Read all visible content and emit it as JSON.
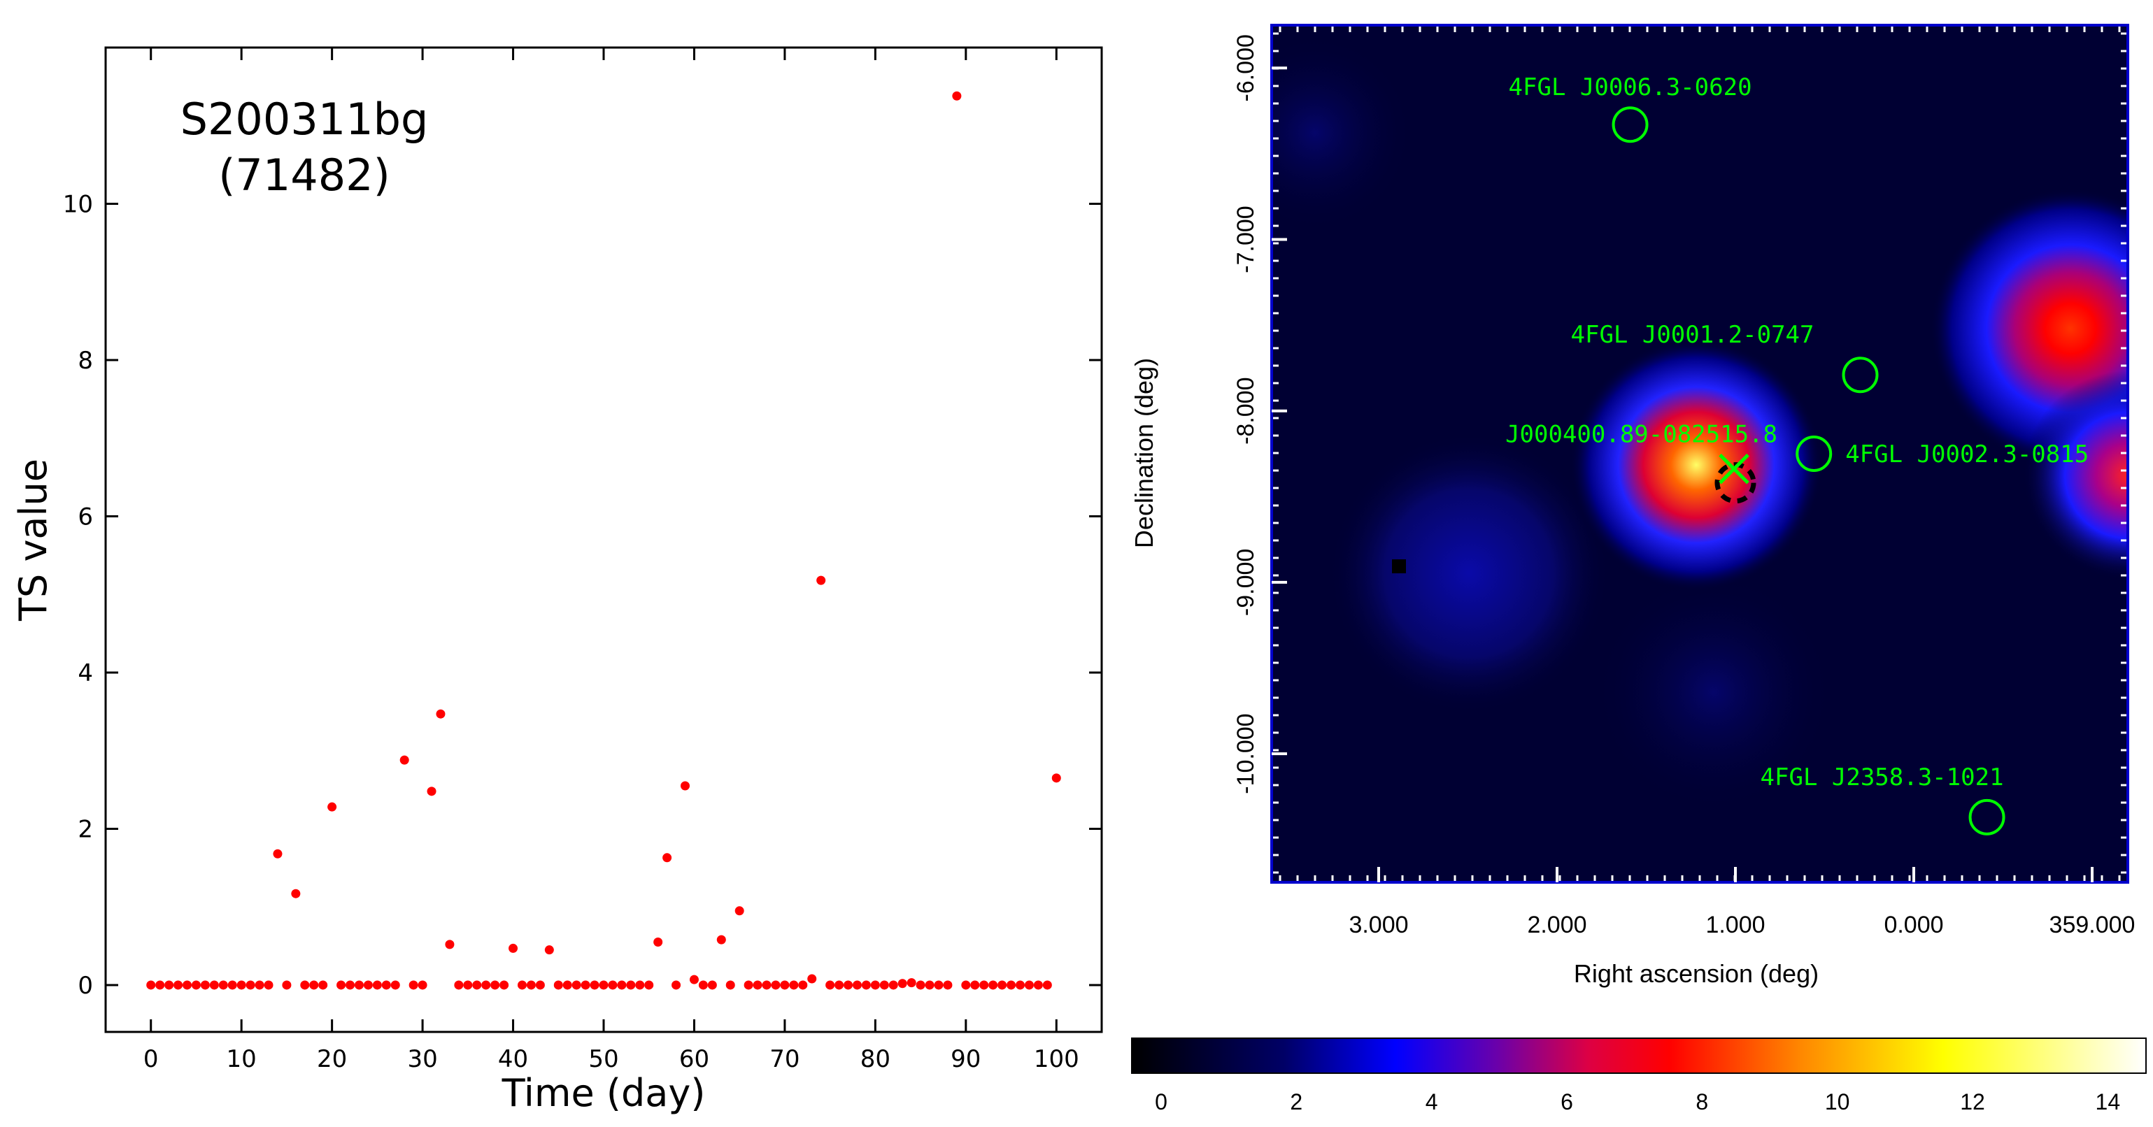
{
  "chart_data": [
    {
      "type": "scatter",
      "title": "S200311bg",
      "subtitle": "(71482)",
      "xlabel": "Time (day)",
      "ylabel": "TS value",
      "xlim": [
        -5,
        105
      ],
      "ylim": [
        -0.6,
        12.0
      ],
      "xticks": [
        0,
        10,
        20,
        30,
        40,
        50,
        60,
        70,
        80,
        90,
        100
      ],
      "yticks": [
        0,
        2,
        4,
        6,
        8,
        10
      ],
      "marker_color": "#ff0000",
      "points": [
        [
          0,
          0
        ],
        [
          1,
          0
        ],
        [
          2,
          0
        ],
        [
          3,
          0
        ],
        [
          4,
          0
        ],
        [
          5,
          0
        ],
        [
          6,
          0
        ],
        [
          7,
          0
        ],
        [
          8,
          0
        ],
        [
          9,
          0
        ],
        [
          10,
          0
        ],
        [
          11,
          0
        ],
        [
          12,
          0
        ],
        [
          13,
          0
        ],
        [
          14,
          1.68
        ],
        [
          15,
          0
        ],
        [
          16,
          1.17
        ],
        [
          17,
          0
        ],
        [
          18,
          0
        ],
        [
          19,
          0
        ],
        [
          20,
          2.28
        ],
        [
          21,
          0
        ],
        [
          22,
          0
        ],
        [
          23,
          0
        ],
        [
          24,
          0
        ],
        [
          25,
          0
        ],
        [
          26,
          0
        ],
        [
          27,
          0
        ],
        [
          28,
          2.88
        ],
        [
          29,
          0
        ],
        [
          30,
          0
        ],
        [
          31,
          2.48
        ],
        [
          32,
          3.47
        ],
        [
          33,
          0.52
        ],
        [
          34,
          0
        ],
        [
          35,
          0
        ],
        [
          36,
          0
        ],
        [
          37,
          0
        ],
        [
          38,
          0
        ],
        [
          39,
          0
        ],
        [
          40,
          0.47
        ],
        [
          41,
          0
        ],
        [
          42,
          0
        ],
        [
          43,
          0
        ],
        [
          44,
          0.45
        ],
        [
          45,
          0
        ],
        [
          46,
          0
        ],
        [
          47,
          0
        ],
        [
          48,
          0
        ],
        [
          49,
          0
        ],
        [
          50,
          0
        ],
        [
          51,
          0
        ],
        [
          52,
          0
        ],
        [
          53,
          0
        ],
        [
          54,
          0
        ],
        [
          55,
          0
        ],
        [
          56,
          0.55
        ],
        [
          57,
          1.63
        ],
        [
          58,
          0
        ],
        [
          59,
          2.55
        ],
        [
          60,
          0.07
        ],
        [
          61,
          0
        ],
        [
          62,
          0
        ],
        [
          63,
          0.58
        ],
        [
          64,
          0
        ],
        [
          65,
          0.95
        ],
        [
          66,
          0
        ],
        [
          67,
          0
        ],
        [
          68,
          0
        ],
        [
          69,
          0
        ],
        [
          70,
          0
        ],
        [
          71,
          0
        ],
        [
          72,
          0
        ],
        [
          73,
          0.08
        ],
        [
          74,
          5.18
        ],
        [
          75,
          0
        ],
        [
          76,
          0
        ],
        [
          77,
          0
        ],
        [
          78,
          0
        ],
        [
          79,
          0
        ],
        [
          80,
          0
        ],
        [
          81,
          0
        ],
        [
          82,
          0
        ],
        [
          83,
          0.02
        ],
        [
          84,
          0.03
        ],
        [
          85,
          0
        ],
        [
          86,
          0
        ],
        [
          87,
          0
        ],
        [
          88,
          0
        ],
        [
          89,
          11.38
        ],
        [
          90,
          0
        ],
        [
          91,
          0
        ],
        [
          92,
          0
        ],
        [
          93,
          0
        ],
        [
          94,
          0
        ],
        [
          95,
          0
        ],
        [
          96,
          0
        ],
        [
          97,
          0
        ],
        [
          98,
          0
        ],
        [
          99,
          0
        ],
        [
          100,
          2.65
        ]
      ]
    },
    {
      "type": "heatmap",
      "xlabel": "Right ascension (deg)",
      "ylabel": "Declination (deg)",
      "xticks": [
        "3.000",
        "2.000",
        "1.000",
        "0.000",
        "359.000"
      ],
      "yticks": [
        "-6.000",
        "-7.000",
        "-8.000",
        "-9.000",
        "-10.000"
      ],
      "colorbar_range": [
        0,
        15
      ],
      "colorbar_ticks": [
        0,
        2,
        4,
        6,
        8,
        10,
        12,
        14
      ],
      "sources": [
        {
          "label": "4FGL J0006.3-0620",
          "ra": 1.59,
          "dec": -6.33
        },
        {
          "label": "4FGL J0001.2-0747",
          "ra": 0.3,
          "dec": -7.79
        },
        {
          "label": "4FGL J0002.3-0815",
          "ra": 0.56,
          "dec": -8.25
        },
        {
          "label": "4FGL J2358.3-1021",
          "ra": -0.41,
          "dec": -10.37
        }
      ],
      "target": {
        "label": "J000400.89-082515.8",
        "ra": 1.0,
        "dec": -8.42
      }
    }
  ],
  "colors": {
    "marker": "#ff0000",
    "source_circles": "#00ff00",
    "map_frame": "#0000cc"
  }
}
